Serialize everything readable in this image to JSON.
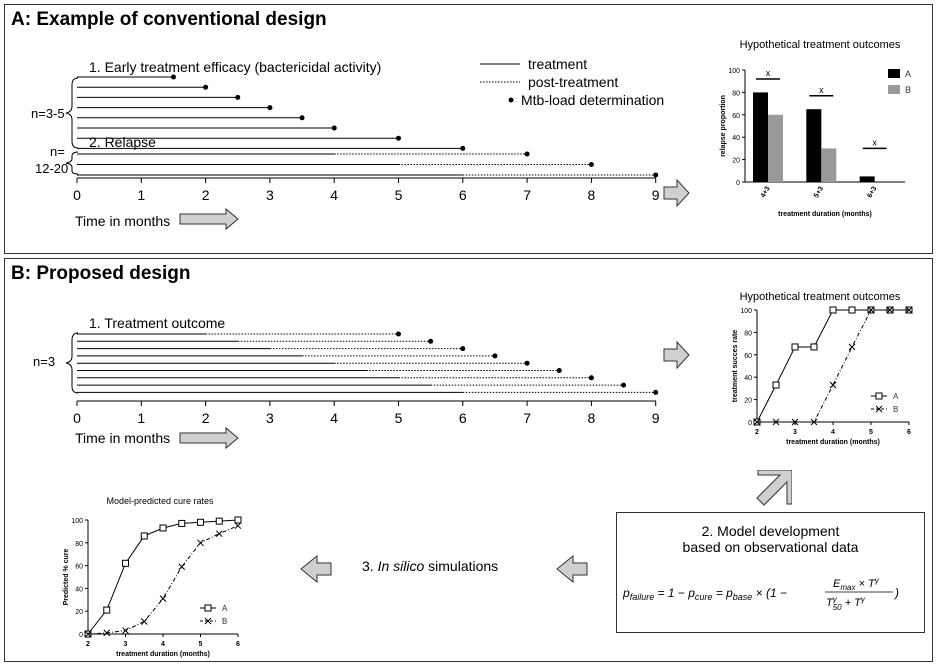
{
  "panel_a": {
    "title": "A: Example of conventional design",
    "section1": "1. Early treatment efficacy (bactericidal activity)",
    "section2": "2. Relapse",
    "group1_n": "n=3-5",
    "group2_n_line1": "n=",
    "group2_n_line2": "12-20",
    "legend": {
      "treatment": "treatment",
      "post_treatment": "post-treatment",
      "mtb": "Mtb-load determination"
    },
    "axis_ticks": [
      "0",
      "1",
      "2",
      "3",
      "4",
      "5",
      "6",
      "7",
      "8",
      "9"
    ],
    "axis_label": "Time in months",
    "early_lines_months": [
      1.5,
      2,
      2.5,
      3,
      3.5,
      4,
      5,
      6
    ],
    "relapse_lines": [
      {
        "treat": 4,
        "end": 7
      },
      {
        "treat": 5,
        "end": 8
      },
      {
        "treat": 6,
        "end": 9
      }
    ]
  },
  "panel_b": {
    "title": "B: Proposed design",
    "section1": "1. Treatment outcome",
    "group_n": "n=3",
    "axis_ticks": [
      "0",
      "1",
      "2",
      "3",
      "4",
      "5",
      "6",
      "7",
      "8",
      "9"
    ],
    "axis_label": "Time in months",
    "lines": [
      {
        "treat": 2,
        "end": 5
      },
      {
        "treat": 2.5,
        "end": 5.5
      },
      {
        "treat": 3,
        "end": 6
      },
      {
        "treat": 3.5,
        "end": 6.5
      },
      {
        "treat": 4,
        "end": 7
      },
      {
        "treat": 4.5,
        "end": 7.5
      },
      {
        "treat": 5,
        "end": 8
      },
      {
        "treat": 5.5,
        "end": 8.5
      },
      {
        "treat": 6,
        "end": 9
      }
    ],
    "model_title_1": "2. Model development",
    "model_title_2": "based on observational data",
    "sim_label_prefix": "3. ",
    "sim_label_italic": "In silico",
    "sim_label_suffix": " simulations"
  },
  "chart_data": [
    {
      "type": "bar",
      "title": "Hypothetical treatment outcomes",
      "xlabel": "treatment duration (months)",
      "ylabel": "relapse proportion",
      "categories": [
        "4+3",
        "5+3",
        "6+3"
      ],
      "series": [
        {
          "name": "A",
          "values": [
            80,
            65,
            5
          ],
          "color": "#000000"
        },
        {
          "name": "B",
          "values": [
            60,
            30,
            0
          ],
          "color": "#999999"
        }
      ],
      "ylim": [
        0,
        100
      ],
      "yticks": [
        "0",
        "20",
        "40",
        "60",
        "80",
        "100"
      ],
      "annotation": "x",
      "annotation_levels": [
        92,
        77,
        30
      ],
      "legend": "top-right"
    },
    {
      "type": "line",
      "title": "Hypothetical treatment outcomes",
      "xlabel": "treatment duration (months)",
      "ylabel": "treatment succes rate",
      "xlim": [
        2,
        6
      ],
      "ylim": [
        0,
        100
      ],
      "xticks": [
        "2",
        "3",
        "4",
        "5",
        "6"
      ],
      "yticks": [
        "0",
        "20",
        "40",
        "60",
        "80",
        "100"
      ],
      "legend": "bottom-right",
      "series": [
        {
          "name": "A",
          "marker": "square",
          "style": "solid",
          "x": [
            2,
            2.5,
            3,
            3.5,
            4,
            4.5,
            5,
            5.5,
            6
          ],
          "y": [
            0,
            33,
            67,
            67,
            100,
            100,
            100,
            100,
            100
          ]
        },
        {
          "name": "B",
          "marker": "x",
          "style": "dashdot",
          "x": [
            2,
            2.5,
            3,
            3.5,
            4,
            4.5,
            5,
            5.5,
            6
          ],
          "y": [
            0,
            0,
            0,
            0,
            33,
            67,
            100,
            100,
            100
          ]
        }
      ]
    },
    {
      "type": "line",
      "title": "Model-predicted cure rates",
      "xlabel": "treatment duration (months)",
      "ylabel": "Predicted % cure",
      "xlim": [
        2,
        6
      ],
      "ylim": [
        0,
        100
      ],
      "xticks": [
        "2",
        "3",
        "4",
        "5",
        "6"
      ],
      "yticks": [
        "0",
        "20",
        "40",
        "60",
        "80",
        "100"
      ],
      "legend": "bottom-right",
      "series": [
        {
          "name": "A",
          "marker": "square",
          "style": "solid",
          "x": [
            2,
            2.5,
            3,
            3.5,
            4,
            4.5,
            5,
            5.5,
            6
          ],
          "y": [
            0,
            21,
            62,
            86,
            93,
            97,
            98,
            99,
            100
          ]
        },
        {
          "name": "B",
          "marker": "x",
          "style": "dashdot",
          "x": [
            2,
            2.5,
            3,
            3.5,
            4,
            4.5,
            5,
            5.5,
            6
          ],
          "y": [
            0,
            1,
            3,
            11,
            31,
            59,
            80,
            88,
            95
          ]
        }
      ]
    }
  ]
}
